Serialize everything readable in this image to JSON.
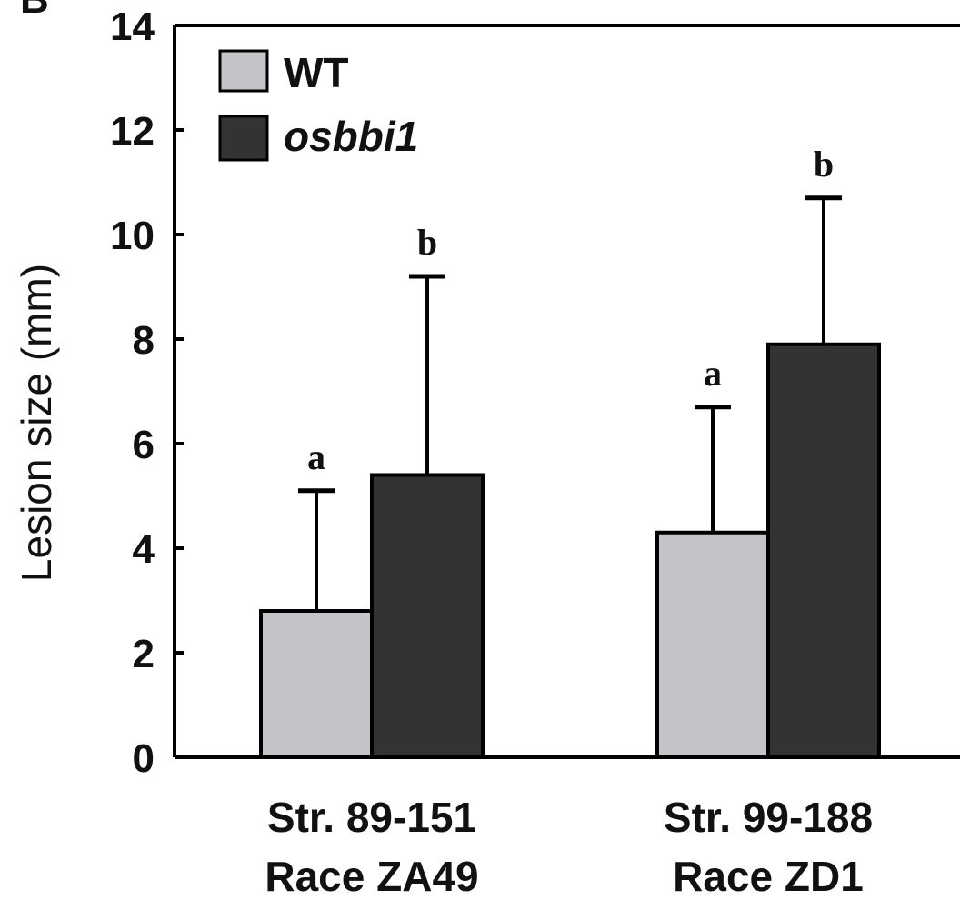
{
  "panel_label": "B",
  "colors": {
    "wt": "#c3c3c8",
    "mutant": "#323434",
    "axis": "#000000"
  },
  "chart_data": {
    "type": "bar",
    "ylabel": "Lesion size (mm)",
    "ylim": [
      0,
      14
    ],
    "yticks": [
      "0",
      "2",
      "4",
      "6",
      "8",
      "10",
      "12",
      "14"
    ],
    "categories": [
      [
        "Str. 89-151",
        "Race ZA49"
      ],
      [
        "Str. 99-188",
        "Race ZD1"
      ]
    ],
    "series": [
      {
        "name": "WT",
        "values": [
          2.8,
          4.3
        ],
        "errors": [
          2.3,
          2.4
        ],
        "significance": [
          "a",
          "a"
        ]
      },
      {
        "name": "osbbi1",
        "values": [
          5.4,
          7.9
        ],
        "errors": [
          3.8,
          2.8
        ],
        "significance": [
          "b",
          "b"
        ]
      }
    ],
    "legend": "top-left",
    "grid": false
  }
}
